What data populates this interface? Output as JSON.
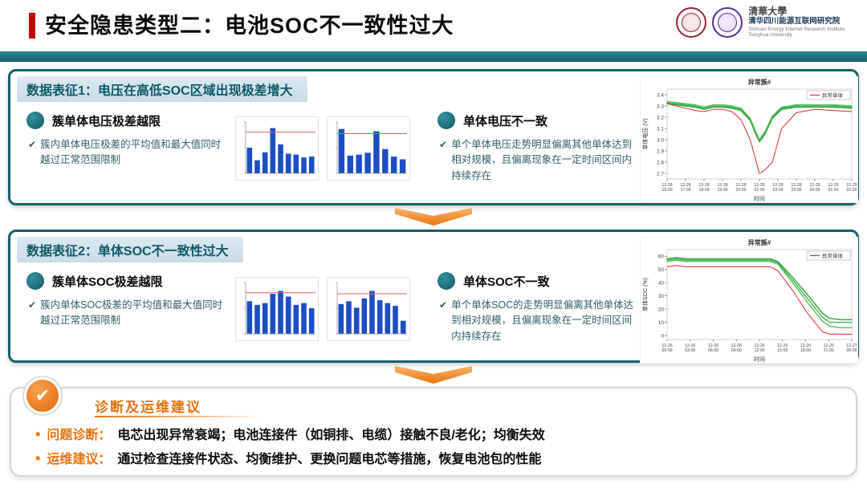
{
  "slide": {
    "title": "安全隐患类型二：电池SOC不一致性过大",
    "logo": {
      "university": "清華大學",
      "institute_cn": "清华四川能源互联网研究院",
      "institute_en1": "Sichuan Energy Internet Research Institute,",
      "institute_en2": "Tsinghua University"
    }
  },
  "panel1": {
    "header": "数据表征1：电压在高低SOC区域出现极差增大",
    "left": {
      "heading": "簇单体电压极差越限",
      "check": "✔",
      "note": "簇内单体电压极差的平均值和最大值同时越过正常范围限制"
    },
    "right": {
      "heading": "单体电压不一致",
      "check": "✔",
      "note": "单个单体电压走势明显偏离其他单体达到相对规模，且偏离现象在一定时间区间内持续存在"
    }
  },
  "panel2": {
    "header": "数据表征2：单体SOC不一致性过大",
    "left": {
      "heading": "簇单体SOC极差越限",
      "check": "✔",
      "note": "簇内单体SOC极差的平均值和最大值同时越过正常范围限制"
    },
    "right": {
      "heading": "单体SOC不一致",
      "check": "✔",
      "note": "单个单体SOC的走势明显偏离其他单体达到相对规模，且偏离现象在一定时间区间内持续存在"
    }
  },
  "advice": {
    "badge_check": "✔",
    "bullet": "•",
    "title": "诊断及运维建议",
    "items": [
      {
        "label": "问题诊断：",
        "text": "电芯出现异常衰竭；电池连接件（如铜排、电缆）接触不良/老化；均衡失效"
      },
      {
        "label": "运维建议：",
        "text": "通过检查连接件状态、均衡维护、更换问题电芯等措施，恢复电池包的性能"
      }
    ]
  },
  "colors": {
    "teal": "#155E6B",
    "header_strip": "#CFE0EA",
    "orange": "#E8720C",
    "red_accent": "#C00000",
    "bar_blue": "#1A4FC4",
    "threshold_red": "#E06060",
    "anomaly_red": "#E02B2B",
    "normal_green": "#3CB54A"
  },
  "chart_data": [
    {
      "id": "p1-voltage-range-bars-a",
      "type": "bar",
      "values": [
        55,
        28,
        45,
        97,
        62,
        42,
        40,
        34,
        36
      ],
      "threshold": 88,
      "ylim": [
        0,
        110
      ]
    },
    {
      "id": "p1-voltage-range-bars-b",
      "type": "bar",
      "values": [
        95,
        38,
        40,
        44,
        90,
        52,
        36,
        30
      ],
      "threshold": 85,
      "ylim": [
        0,
        110
      ]
    },
    {
      "id": "p1-cell-voltage-line",
      "type": "line",
      "title": "异常簇#",
      "legend": "异常单体",
      "ylabel": "单体电压 (V)",
      "xlabel": "时间",
      "ylim": [
        2.65,
        3.45
      ],
      "yticks": [
        "2.7",
        "2.8",
        "2.9",
        "3.0",
        "3.1",
        "3.2",
        "3.3",
        "3.4"
      ],
      "xticks": [
        "12-28 16:00",
        "12-28 17:00",
        "12-28 18:00",
        "12-28 19:00",
        "12-28 20:00",
        "12-28 21:00",
        "12-28 22:00",
        "12-28 23:00",
        "12-29 00:00",
        "12-29 01:00",
        "12-29 02:00"
      ],
      "x": [
        0,
        5,
        10,
        15,
        20,
        25,
        30,
        35,
        40,
        45,
        48,
        50,
        53,
        57,
        62,
        70,
        80,
        90,
        100
      ],
      "series": [
        {
          "name": "正常单体",
          "color": "#3CB54A",
          "w": 1.4,
          "y": [
            3.33,
            3.32,
            3.31,
            3.3,
            3.28,
            3.3,
            3.3,
            3.29,
            3.27,
            3.18,
            3.06,
            2.99,
            3.06,
            3.2,
            3.28,
            3.3,
            3.3,
            3.3,
            3.29
          ]
        },
        {
          "name": "正常单体",
          "color": "#2FA03C",
          "w": 1.4,
          "y": [
            3.32,
            3.31,
            3.3,
            3.29,
            3.27,
            3.29,
            3.29,
            3.28,
            3.26,
            3.17,
            3.05,
            2.98,
            3.05,
            3.19,
            3.27,
            3.29,
            3.29,
            3.29,
            3.28
          ]
        },
        {
          "name": "正常单体",
          "color": "#52C25E",
          "w": 1.4,
          "y": [
            3.34,
            3.33,
            3.32,
            3.31,
            3.29,
            3.31,
            3.31,
            3.3,
            3.28,
            3.19,
            3.07,
            3.0,
            3.07,
            3.21,
            3.29,
            3.31,
            3.31,
            3.31,
            3.3
          ]
        },
        {
          "name": "异常单体",
          "color": "#E02B2B",
          "w": 1.0,
          "y": [
            3.32,
            3.3,
            3.28,
            3.26,
            3.25,
            3.27,
            3.27,
            3.25,
            3.18,
            3.0,
            2.82,
            2.7,
            2.73,
            2.8,
            3.1,
            3.24,
            3.27,
            3.26,
            3.25
          ]
        }
      ]
    },
    {
      "id": "p2-soc-range-bars-a",
      "type": "bar",
      "values": [
        70,
        62,
        66,
        86,
        92,
        80,
        62,
        66,
        55
      ],
      "threshold": 88,
      "ylim": [
        0,
        110
      ]
    },
    {
      "id": "p2-soc-range-bars-b",
      "type": "bar",
      "values": [
        64,
        70,
        56,
        76,
        92,
        72,
        66,
        60,
        28
      ],
      "threshold": 86,
      "ylim": [
        0,
        110
      ]
    },
    {
      "id": "p2-cell-soc-line",
      "type": "line",
      "title": "异常簇#",
      "legend": "异常单体",
      "ylabel": "单体SOC (%)",
      "xlabel": "时间",
      "ylim": [
        -3,
        65
      ],
      "yticks": [
        "0",
        "10",
        "20",
        "30",
        "40",
        "50",
        "60"
      ],
      "xticks": [
        "12-26 00:00",
        "12-26 03:00",
        "12-26 06:00",
        "12-26 09:00",
        "12-26 12:00",
        "12-26 15:00",
        "12-26 18:00",
        "12-26 21:00",
        "12-27 00:00"
      ],
      "x": [
        0,
        5,
        10,
        20,
        30,
        40,
        50,
        56,
        60,
        68,
        76,
        84,
        88,
        94,
        100
      ],
      "series": [
        {
          "name": "正常单体",
          "color": "#3CB54A",
          "w": 1.4,
          "y": [
            57,
            58,
            57,
            57,
            57,
            57,
            57,
            57,
            55,
            42,
            28,
            14,
            10,
            10,
            10
          ]
        },
        {
          "name": "正常单体",
          "color": "#2FA03C",
          "w": 1.4,
          "y": [
            58,
            59,
            58,
            58,
            58,
            58,
            58,
            58,
            56,
            44,
            31,
            17,
            13,
            12,
            12
          ]
        },
        {
          "name": "正常单体",
          "color": "#52C25E",
          "w": 1.4,
          "y": [
            56,
            57,
            56,
            56,
            56,
            56,
            56,
            56,
            54,
            40,
            25,
            11,
            7,
            6,
            6
          ]
        },
        {
          "name": "异常单体",
          "color": "#E02B2B",
          "w": 1.0,
          "y": [
            52,
            53,
            52,
            52,
            52,
            52,
            52,
            52,
            49,
            34,
            17,
            3,
            1,
            1,
            1
          ]
        }
      ]
    }
  ]
}
